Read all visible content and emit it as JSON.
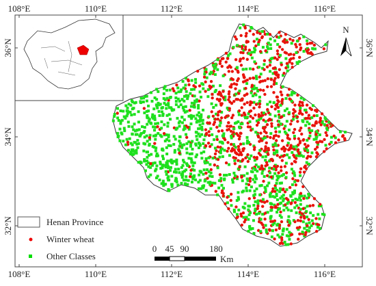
{
  "map": {
    "longitude_labels": [
      "108°E",
      "110°E",
      "112°E",
      "114°E",
      "116°E"
    ],
    "latitude_labels": [
      "36°N",
      "34°N",
      "32°N"
    ],
    "north_arrow": "N",
    "legend": [
      "Henan Province",
      "Winter wheat",
      "Other Classes"
    ],
    "scale_bar": {
      "labels": [
        "0",
        "45",
        "90",
        "180"
      ],
      "unit": "Km"
    }
  }
}
